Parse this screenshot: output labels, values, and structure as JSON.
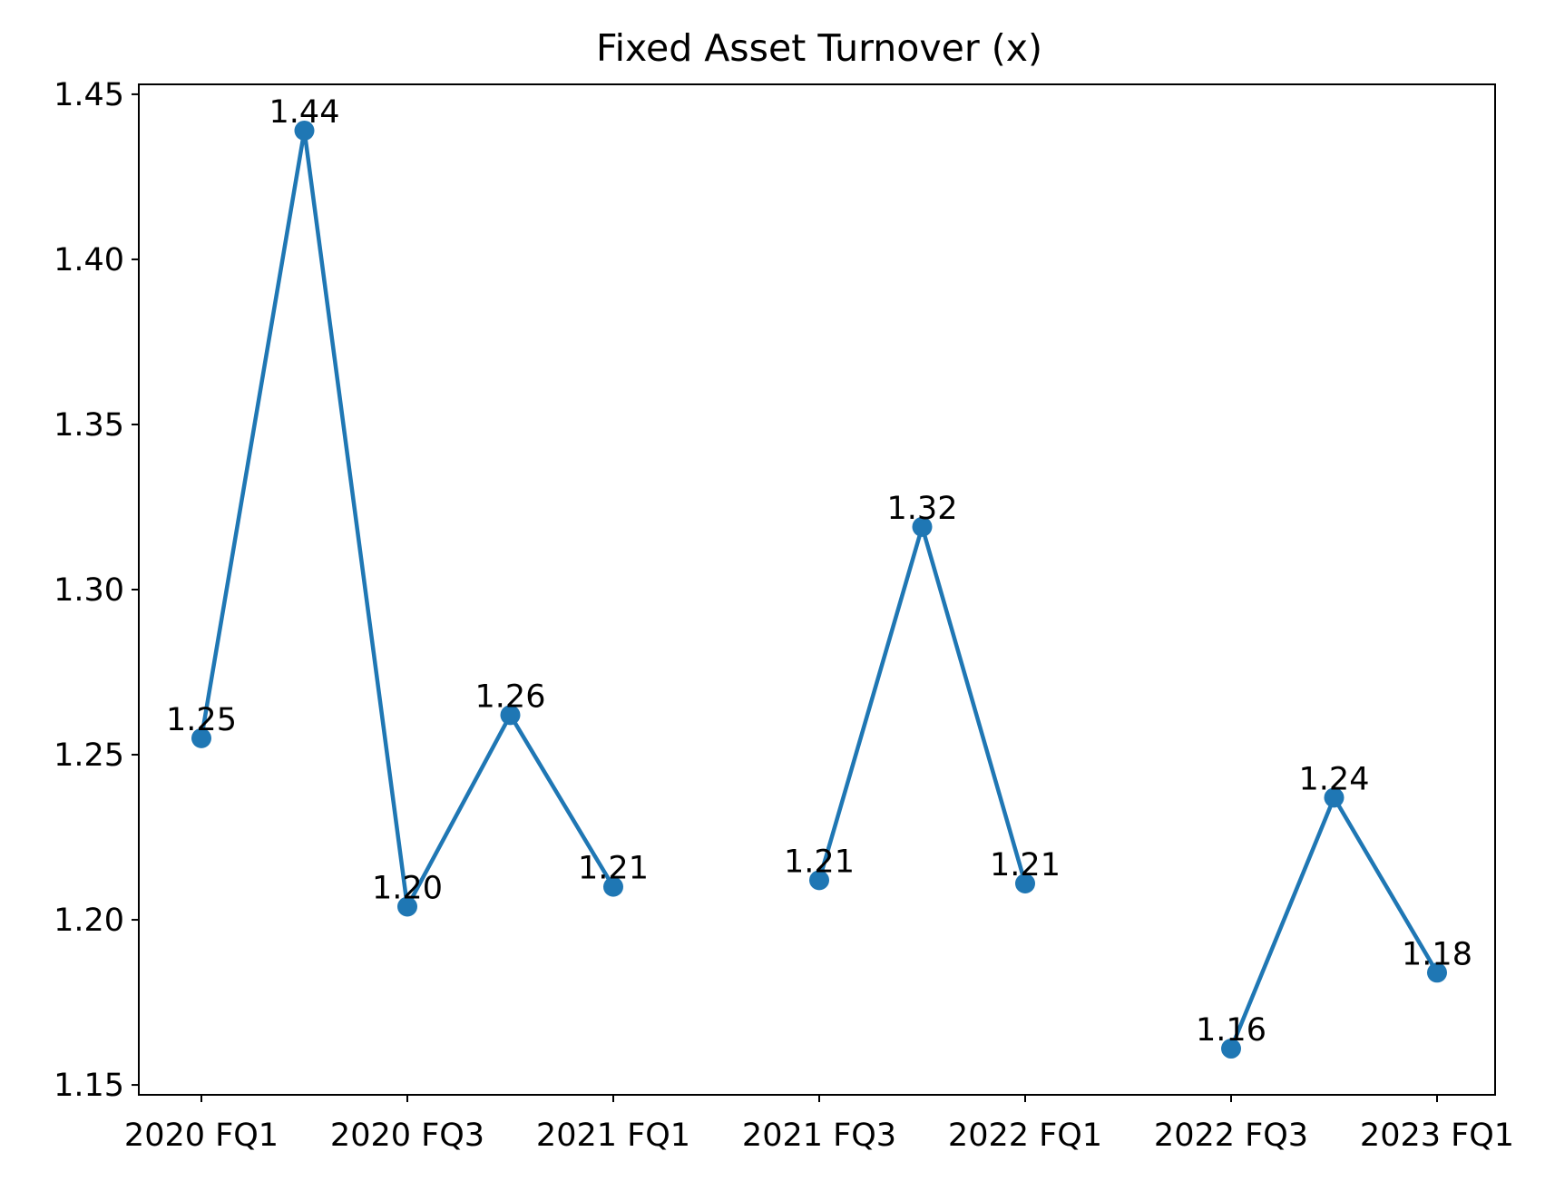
{
  "chart_data": {
    "type": "line",
    "title": "Fixed Asset Turnover (x)",
    "xlabel": "",
    "ylabel": "",
    "x_tick_labels": [
      "2020 FQ1",
      "2020 FQ3",
      "2021 FQ1",
      "2021 FQ3",
      "2022 FQ1",
      "2022 FQ3",
      "2023 FQ1"
    ],
    "y_ticks": [
      1.15,
      1.2,
      1.25,
      1.3,
      1.35,
      1.4,
      1.45
    ],
    "ylim": [
      1.147,
      1.453
    ],
    "grid": false,
    "legend": "none",
    "series": [
      {
        "color": "#1f77b4",
        "segments": [
          [
            {
              "x": 0,
              "y": 1.255,
              "label": "1.25"
            },
            {
              "x": 1,
              "y": 1.439,
              "label": "1.44"
            },
            {
              "x": 2,
              "y": 1.204,
              "label": "1.20"
            },
            {
              "x": 3,
              "y": 1.262,
              "label": "1.26"
            },
            {
              "x": 4,
              "y": 1.21,
              "label": "1.21"
            }
          ],
          [
            {
              "x": 6,
              "y": 1.212,
              "label": "1.21"
            },
            {
              "x": 7,
              "y": 1.319,
              "label": "1.32"
            },
            {
              "x": 8,
              "y": 1.211,
              "label": "1.21"
            }
          ],
          [
            {
              "x": 10,
              "y": 1.161,
              "label": "1.16"
            },
            {
              "x": 11,
              "y": 1.237,
              "label": "1.24"
            },
            {
              "x": 12,
              "y": 1.184,
              "label": "1.18"
            }
          ]
        ]
      }
    ]
  }
}
